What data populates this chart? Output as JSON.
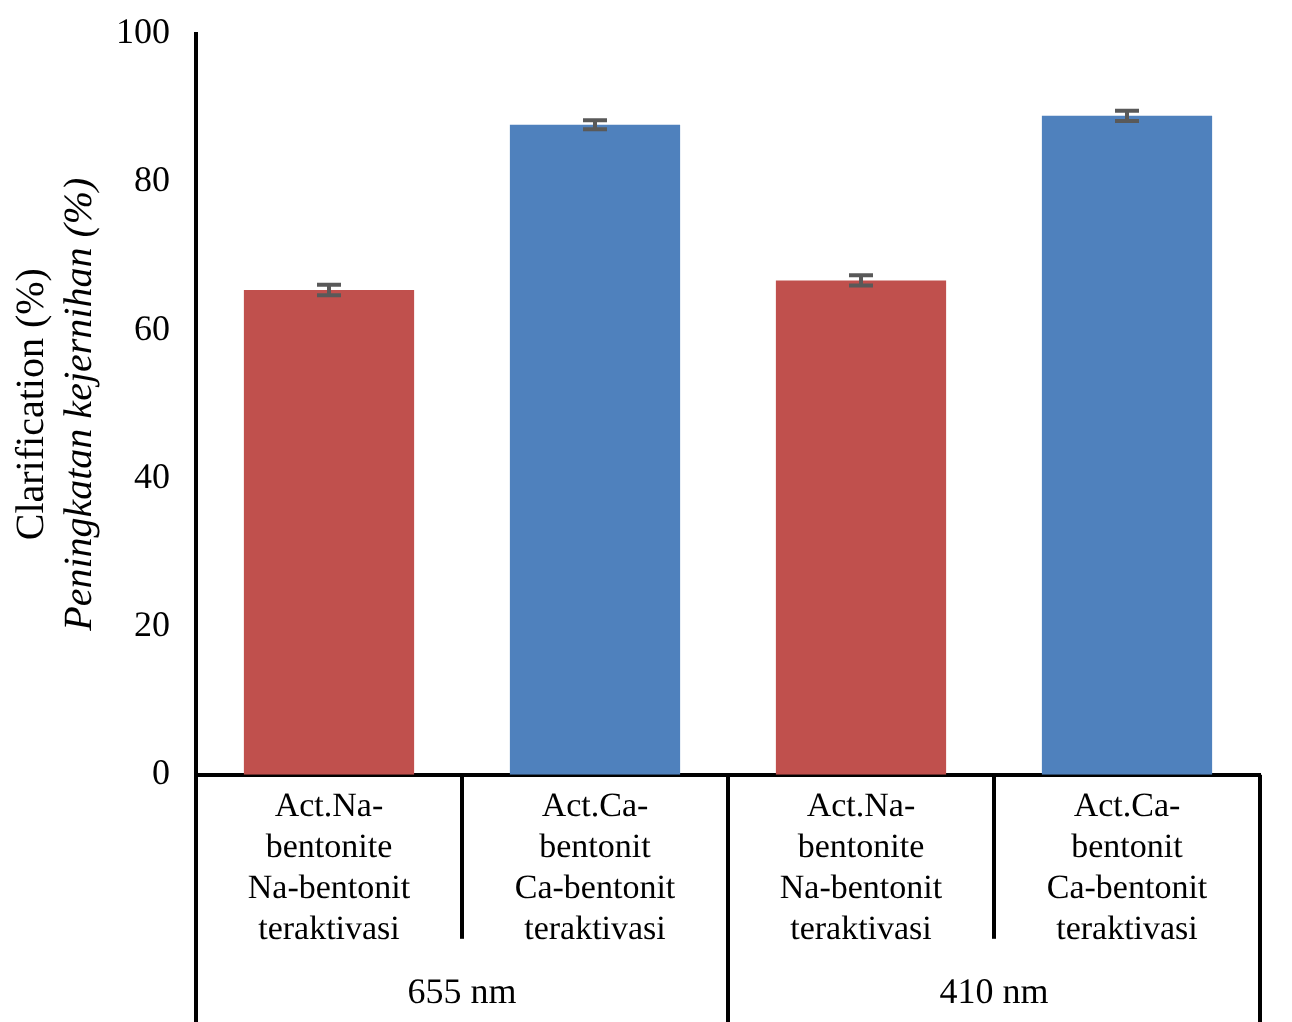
{
  "chart_data": {
    "type": "bar",
    "categories": [
      "Act.Na-\nbentonite\nNa-bentonit\nteraktivasi",
      "Act.Ca-\nbentonit\nCa-bentonit\nteraktivasi",
      "Act.Na-\nbentonite\nNa-bentonit\nteraktivasi",
      "Act.Ca-\nbentonit\nCa-bentonit\nteraktivasi"
    ],
    "values": [
      65.4,
      87.7,
      66.7,
      88.9
    ],
    "errors": [
      0.7,
      0.6,
      0.7,
      0.7
    ],
    "colors": [
      "#c0504d",
      "#4f81bd",
      "#c0504d",
      "#4f81bd"
    ],
    "ylabel": "Clarification (%)\nPeningkatan kejernihan (%)",
    "ylim": [
      0,
      100
    ],
    "yticks": [
      0,
      20,
      40,
      60,
      80,
      100
    ],
    "annotations": [
      "655 nm",
      "410 nm"
    ],
    "grid": false,
    "legend": false
  }
}
